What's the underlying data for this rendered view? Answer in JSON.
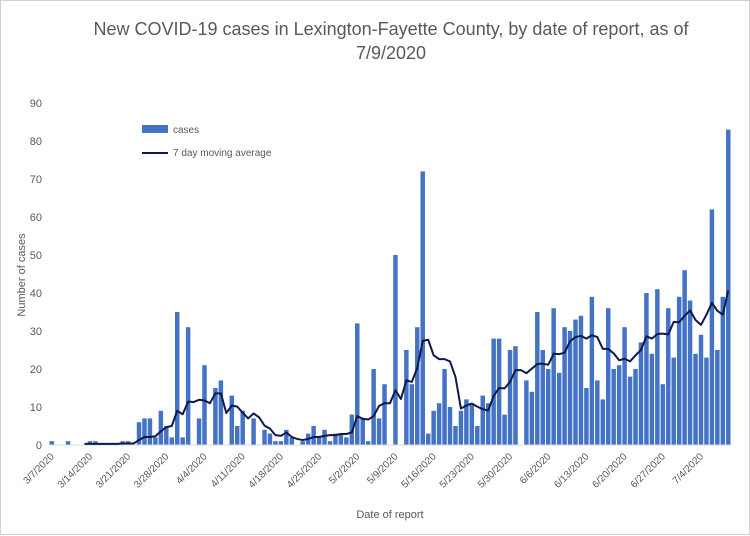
{
  "chart_data": {
    "type": "bar",
    "title": "New COVID-19 cases in Lexington-Fayette County, by date of report, as of 7/9/2020",
    "xlabel": "Date of report",
    "ylabel": "Number of cases",
    "ylim": [
      0,
      90
    ],
    "yticks": [
      0,
      10,
      20,
      30,
      40,
      50,
      60,
      70,
      80,
      90
    ],
    "grid": false,
    "legend_position": "top-left",
    "x": [
      "3/7/2020",
      "3/8/2020",
      "3/9/2020",
      "3/10/2020",
      "3/11/2020",
      "3/12/2020",
      "3/13/2020",
      "3/14/2020",
      "3/15/2020",
      "3/16/2020",
      "3/17/2020",
      "3/18/2020",
      "3/19/2020",
      "3/20/2020",
      "3/21/2020",
      "3/22/2020",
      "3/23/2020",
      "3/24/2020",
      "3/25/2020",
      "3/26/2020",
      "3/27/2020",
      "3/28/2020",
      "3/29/2020",
      "3/30/2020",
      "3/31/2020",
      "4/1/2020",
      "4/2/2020",
      "4/3/2020",
      "4/4/2020",
      "4/5/2020",
      "4/6/2020",
      "4/7/2020",
      "4/8/2020",
      "4/9/2020",
      "4/10/2020",
      "4/11/2020",
      "4/12/2020",
      "4/13/2020",
      "4/14/2020",
      "4/15/2020",
      "4/16/2020",
      "4/17/2020",
      "4/18/2020",
      "4/19/2020",
      "4/20/2020",
      "4/21/2020",
      "4/22/2020",
      "4/23/2020",
      "4/24/2020",
      "4/25/2020",
      "4/26/2020",
      "4/27/2020",
      "4/28/2020",
      "4/29/2020",
      "4/30/2020",
      "5/1/2020",
      "5/2/2020",
      "5/3/2020",
      "5/4/2020",
      "5/5/2020",
      "5/6/2020",
      "5/7/2020",
      "5/8/2020",
      "5/9/2020",
      "5/10/2020",
      "5/11/2020",
      "5/12/2020",
      "5/13/2020",
      "5/14/2020",
      "5/15/2020",
      "5/16/2020",
      "5/17/2020",
      "5/18/2020",
      "5/19/2020",
      "5/20/2020",
      "5/21/2020",
      "5/22/2020",
      "5/23/2020",
      "5/24/2020",
      "5/25/2020",
      "5/26/2020",
      "5/27/2020",
      "5/28/2020",
      "5/29/2020",
      "5/30/2020",
      "5/31/2020",
      "6/1/2020",
      "6/2/2020",
      "6/3/2020",
      "6/4/2020",
      "6/5/2020",
      "6/6/2020",
      "6/7/2020",
      "6/8/2020",
      "6/9/2020",
      "6/10/2020",
      "6/11/2020",
      "6/12/2020",
      "6/13/2020",
      "6/14/2020",
      "6/15/2020",
      "6/16/2020",
      "6/17/2020",
      "6/18/2020",
      "6/19/2020",
      "6/20/2020",
      "6/21/2020",
      "6/22/2020",
      "6/23/2020",
      "6/24/2020",
      "6/25/2020",
      "6/26/2020",
      "6/27/2020",
      "6/28/2020",
      "6/29/2020",
      "6/30/2020",
      "7/1/2020",
      "7/2/2020",
      "7/3/2020",
      "7/4/2020",
      "7/5/2020",
      "7/6/2020",
      "7/7/2020",
      "7/8/2020",
      "7/9/2020"
    ],
    "x_tick_labels": [
      "3/7/2020",
      "3/14/2020",
      "3/21/2020",
      "3/28/2020",
      "4/4/2020",
      "4/11/2020",
      "4/18/2020",
      "4/25/2020",
      "5/2/2020",
      "5/9/2020",
      "5/16/2020",
      "5/23/2020",
      "5/30/2020",
      "6/6/2020",
      "6/13/2020",
      "6/20/2020",
      "6/27/2020",
      "7/4/2020"
    ],
    "series": [
      {
        "name": "cases",
        "type": "bar",
        "color": "#4472c4",
        "values": [
          1,
          0,
          0,
          1,
          0,
          0,
          0,
          1,
          1,
          0,
          0,
          0,
          0,
          1,
          1,
          0,
          6,
          7,
          7,
          2,
          9,
          5,
          2,
          35,
          2,
          31,
          0,
          7,
          21,
          0,
          15,
          17,
          0,
          13,
          5,
          9,
          0,
          7,
          0,
          4,
          3,
          1,
          1,
          4,
          2,
          0,
          1,
          3,
          5,
          2,
          4,
          1,
          3,
          3,
          2,
          8,
          32,
          7,
          1,
          20,
          7,
          16,
          0,
          50,
          0,
          25,
          16,
          31,
          72,
          3,
          9,
          11,
          20,
          10,
          5,
          9,
          12,
          11,
          5,
          13,
          11,
          28,
          28,
          8,
          25,
          26,
          0,
          17,
          14,
          35,
          25,
          20,
          36,
          19,
          31,
          30,
          33,
          34,
          15,
          39,
          17,
          12,
          36,
          20,
          21,
          31,
          18,
          20,
          27,
          40,
          24,
          41,
          16,
          36,
          23,
          39,
          46,
          38,
          24,
          29,
          23,
          62,
          25,
          39,
          83
        ]
      },
      {
        "name": "7 day moving average",
        "type": "line",
        "color": "#0d1a4a",
        "values": [
          null,
          null,
          null,
          null,
          null,
          null,
          0.3,
          0.3,
          0.3,
          0.3,
          0.3,
          0.3,
          0.3,
          0.4,
          0.4,
          0.4,
          1.3,
          2.1,
          2.1,
          2.3,
          3.6,
          4.7,
          5.0,
          9.0,
          8.1,
          11.4,
          11.3,
          11.9,
          11.7,
          11.0,
          13.6,
          13.6,
          8.4,
          10.4,
          10.1,
          8.5,
          7.0,
          8.3,
          7.3,
          5.1,
          4.3,
          2.6,
          2.4,
          3.3,
          2.1,
          1.6,
          1.3,
          1.6,
          2.1,
          2.1,
          2.4,
          2.6,
          2.6,
          2.9,
          2.9,
          3.3,
          7.6,
          6.9,
          6.7,
          7.6,
          10.3,
          11.0,
          11.0,
          14.4,
          12.1,
          17.0,
          16.6,
          20.3,
          27.4,
          27.7,
          23.6,
          22.6,
          22.6,
          22.0,
          17.9,
          9.6,
          10.4,
          10.9,
          10.1,
          9.4,
          9.1,
          12.9,
          15.0,
          14.9,
          16.6,
          19.7,
          19.7,
          18.9,
          20.1,
          21.3,
          21.4,
          21.1,
          24.0,
          23.9,
          24.3,
          27.3,
          28.4,
          28.7,
          28.0,
          28.9,
          28.4,
          25.3,
          25.3,
          24.1,
          22.3,
          22.7,
          22.0,
          23.6,
          25.0,
          28.6,
          28.0,
          29.2,
          29.3,
          29.1,
          32.4,
          32.3,
          34.0,
          35.4,
          32.9,
          31.6,
          34.3,
          37.4,
          35.3,
          34.3,
          40.7
        ]
      }
    ]
  }
}
